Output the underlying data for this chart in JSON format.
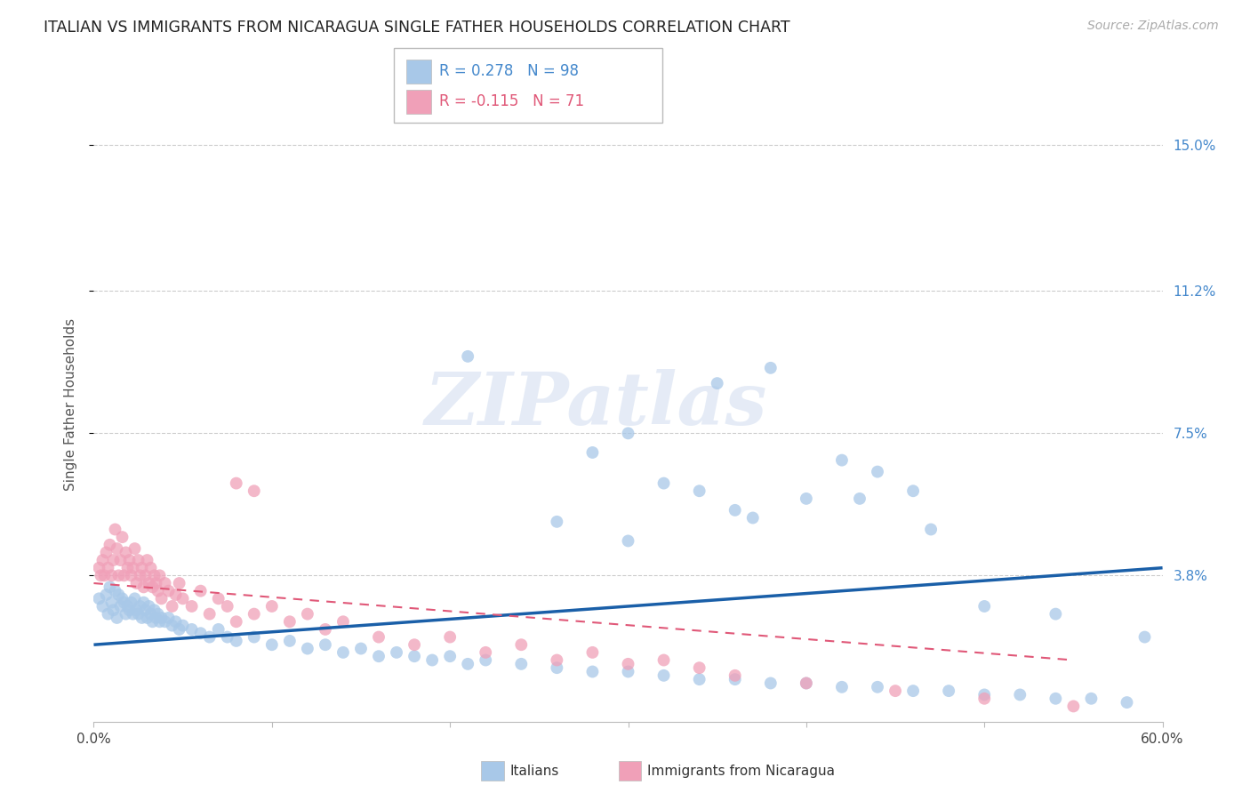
{
  "title": "ITALIAN VS IMMIGRANTS FROM NICARAGUA SINGLE FATHER HOUSEHOLDS CORRELATION CHART",
  "source": "Source: ZipAtlas.com",
  "ylabel": "Single Father Households",
  "ytick_labels": [
    "3.8%",
    "7.5%",
    "11.2%",
    "15.0%"
  ],
  "ytick_values": [
    0.038,
    0.075,
    0.112,
    0.15
  ],
  "xlim": [
    0.0,
    0.6
  ],
  "ylim": [
    0.0,
    0.165
  ],
  "watermark_text": "ZIPatlas",
  "legend_blue_r": "R = 0.278",
  "legend_blue_n": "N = 98",
  "legend_pink_r": "R = -0.115",
  "legend_pink_n": "N = 71",
  "legend_label_blue": "Italians",
  "legend_label_pink": "Immigrants from Nicaragua",
  "blue_color": "#a8c8e8",
  "pink_color": "#f0a0b8",
  "line_blue_color": "#1a5fa8",
  "line_pink_color": "#e05878",
  "background_color": "#ffffff",
  "grid_color": "#cccccc",
  "title_color": "#222222",
  "axis_label_color": "#555555",
  "right_tick_color": "#4488cc",
  "blue_line_x0": 0.0,
  "blue_line_x1": 0.6,
  "blue_line_y0": 0.02,
  "blue_line_y1": 0.04,
  "pink_line_x0": 0.0,
  "pink_line_x1": 0.55,
  "pink_line_y0": 0.036,
  "pink_line_y1": 0.016,
  "blue_scatter_x": [
    0.003,
    0.005,
    0.007,
    0.008,
    0.009,
    0.01,
    0.011,
    0.012,
    0.013,
    0.014,
    0.015,
    0.016,
    0.017,
    0.018,
    0.019,
    0.02,
    0.021,
    0.022,
    0.023,
    0.024,
    0.025,
    0.026,
    0.027,
    0.028,
    0.029,
    0.03,
    0.031,
    0.032,
    0.033,
    0.034,
    0.035,
    0.036,
    0.037,
    0.038,
    0.04,
    0.042,
    0.044,
    0.046,
    0.048,
    0.05,
    0.055,
    0.06,
    0.065,
    0.07,
    0.075,
    0.08,
    0.09,
    0.1,
    0.11,
    0.12,
    0.13,
    0.14,
    0.15,
    0.16,
    0.17,
    0.18,
    0.19,
    0.2,
    0.21,
    0.22,
    0.24,
    0.26,
    0.28,
    0.3,
    0.32,
    0.34,
    0.36,
    0.38,
    0.4,
    0.42,
    0.44,
    0.46,
    0.48,
    0.5,
    0.52,
    0.54,
    0.56,
    0.58,
    0.32,
    0.36,
    0.4,
    0.44,
    0.28,
    0.3,
    0.35,
    0.38,
    0.42,
    0.46,
    0.5,
    0.54,
    0.26,
    0.3,
    0.34,
    0.37,
    0.43,
    0.47,
    0.59,
    0.21
  ],
  "blue_scatter_y": [
    0.032,
    0.03,
    0.033,
    0.028,
    0.035,
    0.031,
    0.029,
    0.034,
    0.027,
    0.033,
    0.03,
    0.032,
    0.031,
    0.028,
    0.03,
    0.029,
    0.031,
    0.028,
    0.032,
    0.029,
    0.028,
    0.03,
    0.027,
    0.031,
    0.029,
    0.027,
    0.03,
    0.028,
    0.026,
    0.029,
    0.027,
    0.028,
    0.026,
    0.027,
    0.026,
    0.027,
    0.025,
    0.026,
    0.024,
    0.025,
    0.024,
    0.023,
    0.022,
    0.024,
    0.022,
    0.021,
    0.022,
    0.02,
    0.021,
    0.019,
    0.02,
    0.018,
    0.019,
    0.017,
    0.018,
    0.017,
    0.016,
    0.017,
    0.015,
    0.016,
    0.015,
    0.014,
    0.013,
    0.013,
    0.012,
    0.011,
    0.011,
    0.01,
    0.01,
    0.009,
    0.009,
    0.008,
    0.008,
    0.007,
    0.007,
    0.006,
    0.006,
    0.005,
    0.062,
    0.055,
    0.058,
    0.065,
    0.07,
    0.075,
    0.088,
    0.092,
    0.068,
    0.06,
    0.03,
    0.028,
    0.052,
    0.047,
    0.06,
    0.053,
    0.058,
    0.05,
    0.022,
    0.095
  ],
  "pink_scatter_x": [
    0.003,
    0.004,
    0.005,
    0.006,
    0.007,
    0.008,
    0.009,
    0.01,
    0.011,
    0.012,
    0.013,
    0.014,
    0.015,
    0.016,
    0.017,
    0.018,
    0.019,
    0.02,
    0.021,
    0.022,
    0.023,
    0.024,
    0.025,
    0.026,
    0.027,
    0.028,
    0.029,
    0.03,
    0.031,
    0.032,
    0.033,
    0.034,
    0.035,
    0.036,
    0.037,
    0.038,
    0.04,
    0.042,
    0.044,
    0.046,
    0.048,
    0.05,
    0.055,
    0.06,
    0.065,
    0.07,
    0.075,
    0.08,
    0.09,
    0.1,
    0.11,
    0.12,
    0.13,
    0.14,
    0.16,
    0.18,
    0.2,
    0.22,
    0.24,
    0.26,
    0.28,
    0.3,
    0.32,
    0.34,
    0.36,
    0.4,
    0.45,
    0.5,
    0.55,
    0.08,
    0.09
  ],
  "pink_scatter_y": [
    0.04,
    0.038,
    0.042,
    0.038,
    0.044,
    0.04,
    0.046,
    0.038,
    0.042,
    0.05,
    0.045,
    0.038,
    0.042,
    0.048,
    0.038,
    0.044,
    0.04,
    0.042,
    0.038,
    0.04,
    0.045,
    0.036,
    0.042,
    0.038,
    0.04,
    0.035,
    0.038,
    0.042,
    0.036,
    0.04,
    0.035,
    0.038,
    0.036,
    0.034,
    0.038,
    0.032,
    0.036,
    0.034,
    0.03,
    0.033,
    0.036,
    0.032,
    0.03,
    0.034,
    0.028,
    0.032,
    0.03,
    0.026,
    0.028,
    0.03,
    0.026,
    0.028,
    0.024,
    0.026,
    0.022,
    0.02,
    0.022,
    0.018,
    0.02,
    0.016,
    0.018,
    0.015,
    0.016,
    0.014,
    0.012,
    0.01,
    0.008,
    0.006,
    0.004,
    0.062,
    0.06
  ]
}
